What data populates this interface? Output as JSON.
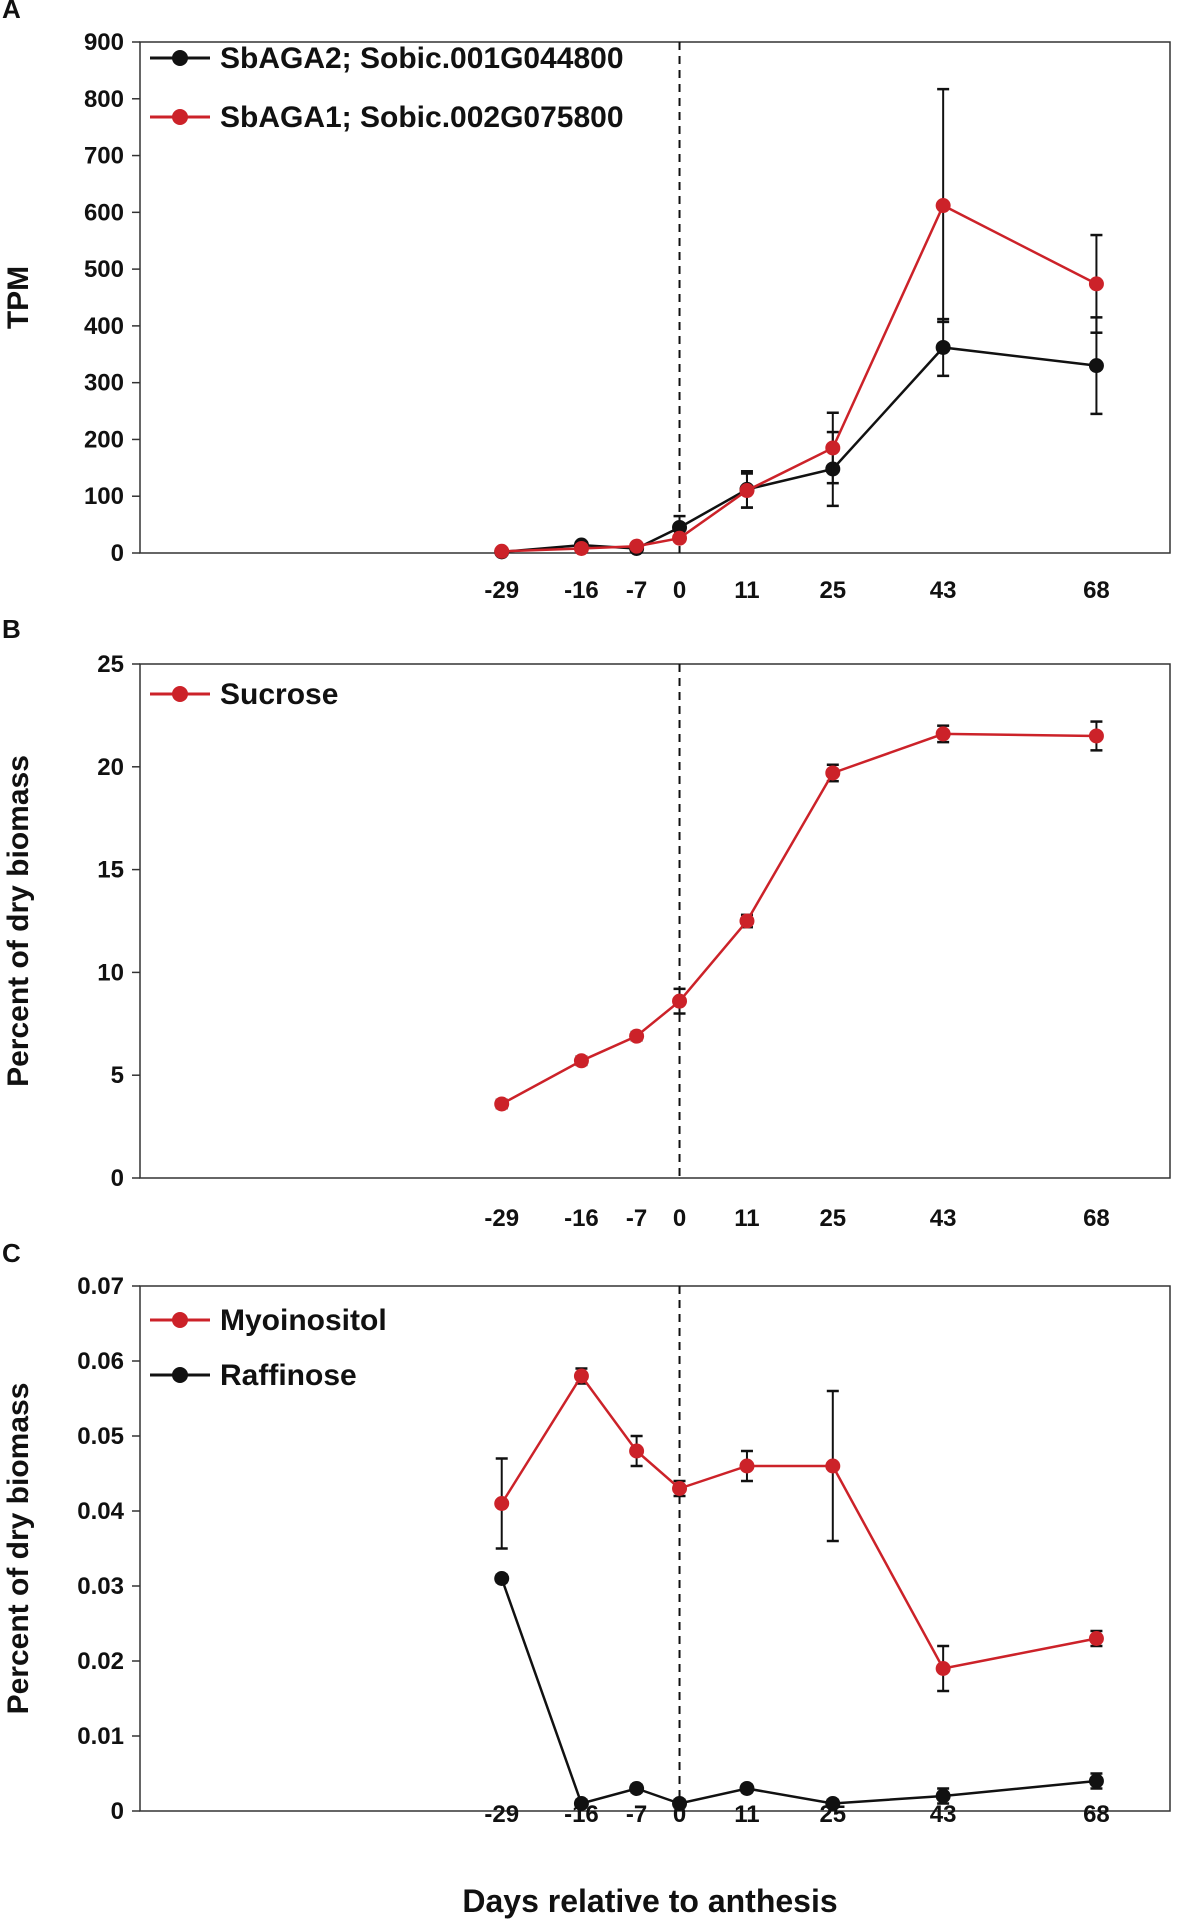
{
  "chart_data": [
    {
      "panel": "A",
      "type": "line",
      "ylabel": "TPM",
      "xlabel": "",
      "ylim": [
        0,
        900
      ],
      "yticks": [
        0,
        100,
        200,
        300,
        400,
        500,
        600,
        700,
        800,
        900
      ],
      "xlim": [
        -88,
        80
      ],
      "x_ticks": [
        -29,
        -16,
        -7,
        0,
        11,
        25,
        43,
        68
      ],
      "anthesis_line_x": 0,
      "legend_position": "top-left",
      "series": [
        {
          "name": "SbAGA2; Sobic.001G044800",
          "color": "#111111",
          "x": [
            -29,
            -16,
            -7,
            0,
            11,
            25,
            43,
            68
          ],
          "values": [
            2,
            14,
            8,
            45,
            112,
            148,
            362,
            330
          ],
          "errors": [
            2,
            4,
            3,
            20,
            32,
            65,
            50,
            85
          ]
        },
        {
          "name": "SbAGA1; Sobic.002G075800",
          "color": "#cc2229",
          "x": [
            -29,
            -16,
            -7,
            0,
            11,
            25,
            43,
            68
          ],
          "values": [
            3,
            8,
            12,
            26,
            110,
            185,
            612,
            474
          ],
          "errors": [
            1,
            2,
            3,
            5,
            30,
            62,
            205,
            86
          ]
        }
      ]
    },
    {
      "panel": "B",
      "type": "line",
      "ylabel": "Percent of dry biomass",
      "xlabel": "",
      "ylim": [
        0,
        25
      ],
      "yticks": [
        0,
        5,
        10,
        15,
        20,
        25
      ],
      "xlim": [
        -88,
        80
      ],
      "x_ticks": [
        -29,
        -16,
        -7,
        0,
        11,
        25,
        43,
        68
      ],
      "anthesis_line_x": 0,
      "legend_position": "top-left",
      "series": [
        {
          "name": "Sucrose",
          "color": "#cc2229",
          "x": [
            -29,
            -16,
            -7,
            0,
            11,
            25,
            43,
            68
          ],
          "values": [
            3.6,
            5.7,
            6.9,
            8.6,
            12.5,
            19.7,
            21.6,
            21.5
          ],
          "errors": [
            0.2,
            0.2,
            0.2,
            0.6,
            0.3,
            0.4,
            0.4,
            0.7
          ]
        }
      ]
    },
    {
      "panel": "C",
      "type": "line",
      "ylabel": "Percent of dry biomass",
      "xlabel": "Days relative to anthesis",
      "ylim": [
        0,
        0.07
      ],
      "yticks": [
        0,
        0.01,
        0.02,
        0.03,
        0.04,
        0.05,
        0.06,
        0.07
      ],
      "xlim": [
        -88,
        80
      ],
      "x_ticks": [
        -29,
        -16,
        -7,
        0,
        11,
        25,
        43,
        68
      ],
      "anthesis_line_x": 0,
      "legend_position": "top-left",
      "series": [
        {
          "name": "Myoinositol",
          "color": "#cc2229",
          "x": [
            -29,
            -16,
            -7,
            0,
            11,
            25,
            43,
            68
          ],
          "values": [
            0.041,
            0.058,
            0.048,
            0.043,
            0.046,
            0.046,
            0.019,
            0.023
          ],
          "errors": [
            0.006,
            0.001,
            0.002,
            0.001,
            0.002,
            0.01,
            0.003,
            0.001
          ]
        },
        {
          "name": "Raffinose",
          "color": "#111111",
          "x": [
            -29,
            -16,
            -7,
            0,
            11,
            25,
            43,
            68
          ],
          "values": [
            0.031,
            0.001,
            0.003,
            0.001,
            0.003,
            0.001,
            0.002,
            0.004
          ],
          "errors": [
            0.0005,
            0.0005,
            0.0005,
            0.0005,
            0.0005,
            0.0005,
            0.001,
            0.001
          ]
        }
      ]
    }
  ]
}
